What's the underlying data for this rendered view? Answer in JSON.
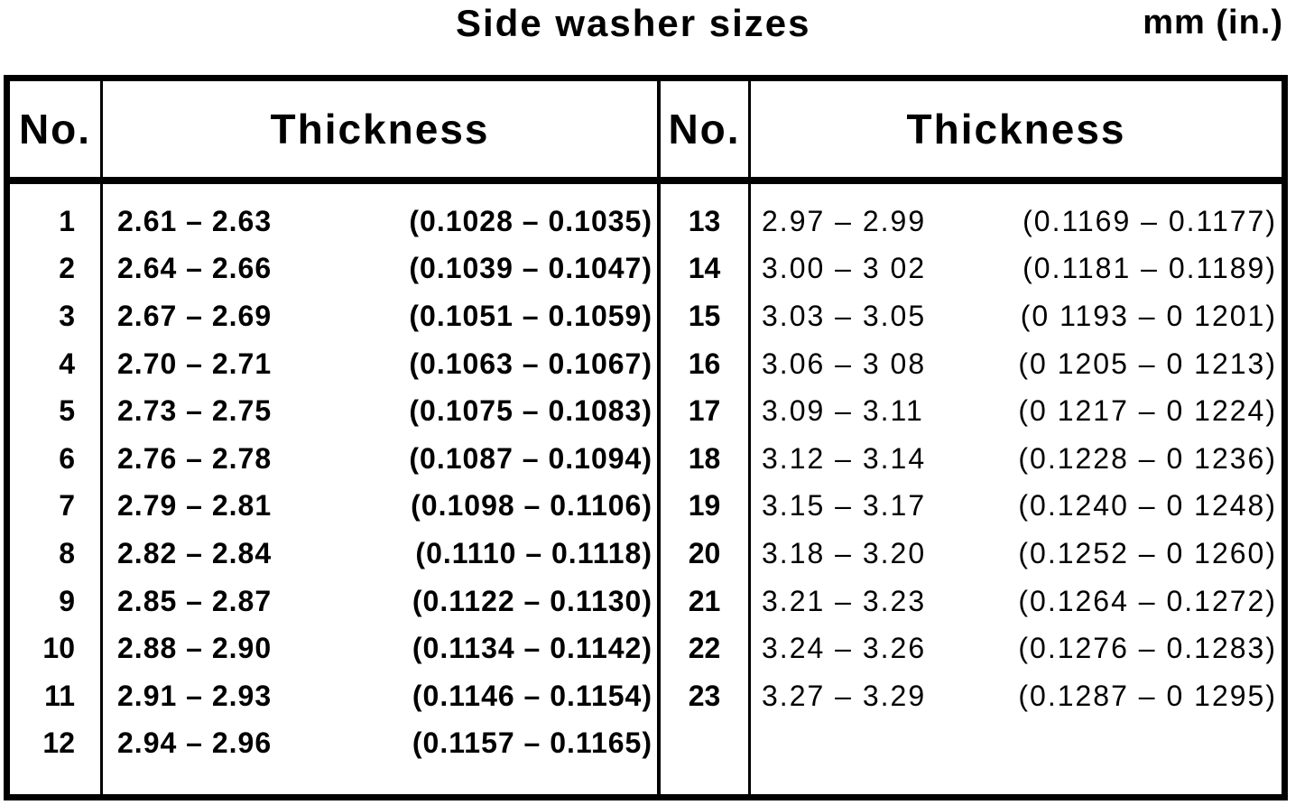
{
  "page": {
    "title": "Side washer sizes",
    "units_label": "mm (in.)"
  },
  "colors": {
    "ink": "#000000",
    "paper": "#ffffff"
  },
  "table": {
    "header": {
      "no": "No.",
      "thickness": "Thickness"
    },
    "left_rows": [
      {
        "no": "1",
        "mm": "2.61 – 2.63",
        "in": "(0.1028 – 0.1035)"
      },
      {
        "no": "2",
        "mm": "2.64 – 2.66",
        "in": "(0.1039 – 0.1047)"
      },
      {
        "no": "3",
        "mm": "2.67 – 2.69",
        "in": "(0.1051 – 0.1059)"
      },
      {
        "no": "4",
        "mm": "2.70 – 2.71",
        "in": "(0.1063 – 0.1067)"
      },
      {
        "no": "5",
        "mm": "2.73 – 2.75",
        "in": "(0.1075 – 0.1083)"
      },
      {
        "no": "6",
        "mm": "2.76 – 2.78",
        "in": "(0.1087 – 0.1094)"
      },
      {
        "no": "7",
        "mm": "2.79 – 2.81",
        "in": "(0.1098 – 0.1106)"
      },
      {
        "no": "8",
        "mm": "2.82 – 2.84",
        "in": "(0.1110 – 0.1118)"
      },
      {
        "no": "9",
        "mm": "2.85 – 2.87",
        "in": "(0.1122 – 0.1130)"
      },
      {
        "no": "10",
        "mm": "2.88 – 2.90",
        "in": "(0.1134 – 0.1142)"
      },
      {
        "no": "11",
        "mm": "2.91 – 2.93",
        "in": "(0.1146 – 0.1154)"
      },
      {
        "no": "12",
        "mm": "2.94 – 2.96",
        "in": "(0.1157 – 0.1165)"
      }
    ],
    "right_rows": [
      {
        "no": "13",
        "mm": "2.97 – 2.99",
        "in": "(0.1169 – 0.1177)"
      },
      {
        "no": "14",
        "mm": "3.00 – 3 02",
        "in": "(0.1181 – 0.1189)"
      },
      {
        "no": "15",
        "mm": "3.03 – 3.05",
        "in": "(0 1193 – 0 1201)"
      },
      {
        "no": "16",
        "mm": "3.06 – 3 08",
        "in": "(0 1205 – 0 1213)"
      },
      {
        "no": "17",
        "mm": "3.09 – 3.11",
        "in": "(0 1217 – 0 1224)"
      },
      {
        "no": "18",
        "mm": "3.12 – 3.14",
        "in": "(0.1228 – 0 1236)"
      },
      {
        "no": "19",
        "mm": "3.15 – 3.17",
        "in": "(0.1240 – 0 1248)"
      },
      {
        "no": "20",
        "mm": "3.18 – 3.20",
        "in": "(0.1252 – 0 1260)"
      },
      {
        "no": "21",
        "mm": "3.21 – 3.23",
        "in": "(0.1264 – 0.1272)"
      },
      {
        "no": "22",
        "mm": "3.24 – 3.26",
        "in": "(0.1276 – 0.1283)"
      },
      {
        "no": "23",
        "mm": "3.27 – 3.29",
        "in": "(0.1287 – 0 1295)"
      }
    ]
  }
}
